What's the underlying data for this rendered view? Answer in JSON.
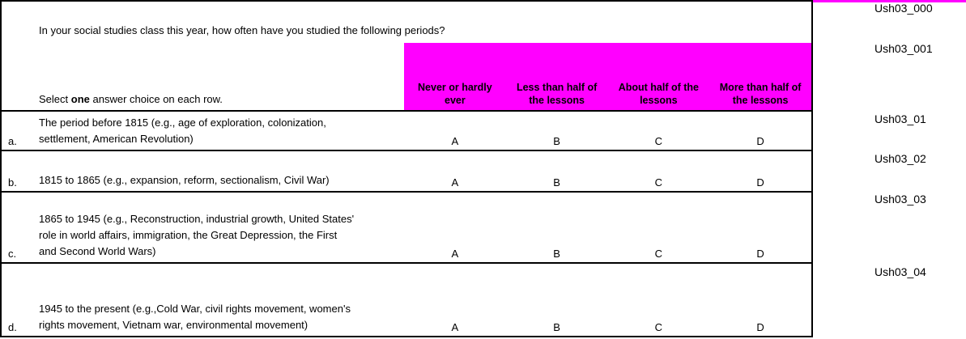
{
  "question": {
    "text": "In your social studies class this year, how often have you studied the following periods?"
  },
  "instruction": {
    "prefix": "Select ",
    "bold": "one",
    "suffix": " answer choice on each row."
  },
  "header": {
    "options": [
      "Never or hardly\never",
      "Less than half of\nthe lessons",
      "About half of the\nlessons",
      "More than half of\nthe lessons"
    ]
  },
  "rows": [
    {
      "letter": "a.",
      "text": "The period before 1815 (e.g., age of exploration, colonization,\nsettlement, American Revolution)",
      "choices": [
        "A",
        "B",
        "C",
        "D"
      ]
    },
    {
      "letter": "b.",
      "text": "1815 to 1865 (e.g., expansion, reform, sectionalism, Civil War)",
      "choices": [
        "A",
        "B",
        "C",
        "D"
      ]
    },
    {
      "letter": "c.",
      "text": "1865 to 1945 (e.g., Reconstruction, industrial growth, United States'\nrole in world affairs, immigration, the Great Depression, the First\nand Second World Wars)",
      "choices": [
        "A",
        "B",
        "C",
        "D"
      ]
    },
    {
      "letter": "d.",
      "text": "1945 to the present (e.g.,Cold War, civil rights movement, women's\nrights movement, Vietnam war, environmental movement)",
      "choices": [
        "A",
        "B",
        "C",
        "D"
      ]
    }
  ],
  "codes": [
    "Ush03_000",
    "Ush03_001",
    "Ush03_01",
    "Ush03_02",
    "Ush03_03",
    "Ush03_04"
  ],
  "colors": {
    "header_bg": "#ff00ff",
    "border": "#000000"
  }
}
